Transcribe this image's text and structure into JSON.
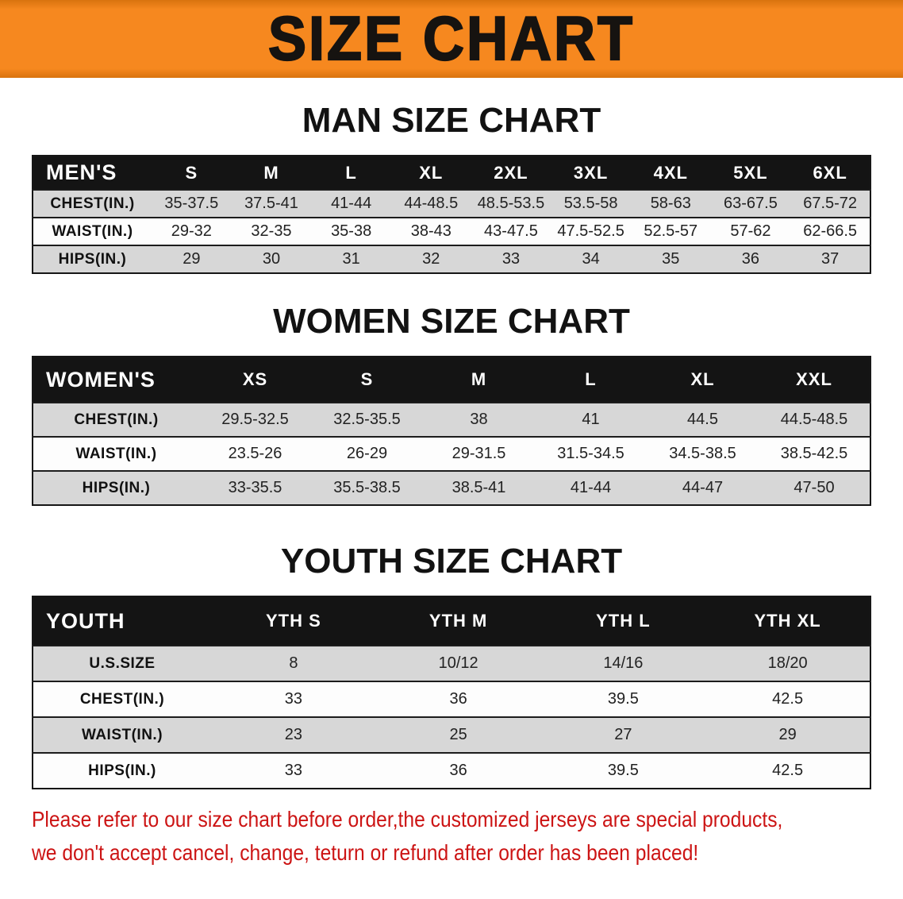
{
  "banner": {
    "title": "SIZE CHART",
    "bg_color": "#f6881f",
    "text_color": "#161310"
  },
  "colors": {
    "table_header_bg": "#141414",
    "table_header_text": "#ffffff",
    "row_shade": "#d7d7d7"
  },
  "sections": [
    {
      "id": "men",
      "heading": "MAN SIZE CHART",
      "table": {
        "label": "MEN'S",
        "columns": [
          "S",
          "M",
          "L",
          "XL",
          "2XL",
          "3XL",
          "4XL",
          "5XL",
          "6XL"
        ],
        "rows": [
          {
            "label": "CHEST(IN.)",
            "values": [
              "35-37.5",
              "37.5-41",
              "41-44",
              "44-48.5",
              "48.5-53.5",
              "53.5-58",
              "58-63",
              "63-67.5",
              "67.5-72"
            ]
          },
          {
            "label": "WAIST(IN.)",
            "values": [
              "29-32",
              "32-35",
              "35-38",
              "38-43",
              "43-47.5",
              "47.5-52.5",
              "52.5-57",
              "57-62",
              "62-66.5"
            ]
          },
          {
            "label": "HIPS(IN.)",
            "values": [
              "29",
              "30",
              "31",
              "32",
              "33",
              "34",
              "35",
              "36",
              "37"
            ]
          }
        ]
      }
    },
    {
      "id": "women",
      "heading": "WOMEN SIZE CHART",
      "table": {
        "label": "WOMEN'S",
        "columns": [
          "XS",
          "S",
          "M",
          "L",
          "XL",
          "XXL"
        ],
        "rows": [
          {
            "label": "CHEST(IN.)",
            "values": [
              "29.5-32.5",
              "32.5-35.5",
              "38",
              "41",
              "44.5",
              "44.5-48.5"
            ]
          },
          {
            "label": "WAIST(IN.)",
            "values": [
              "23.5-26",
              "26-29",
              "29-31.5",
              "31.5-34.5",
              "34.5-38.5",
              "38.5-42.5"
            ]
          },
          {
            "label": "HIPS(IN.)",
            "values": [
              "33-35.5",
              "35.5-38.5",
              "38.5-41",
              "41-44",
              "44-47",
              "47-50"
            ]
          }
        ]
      }
    },
    {
      "id": "youth",
      "heading": "YOUTH SIZE CHART",
      "table": {
        "label": "YOUTH",
        "columns": [
          "YTH S",
          "YTH M",
          "YTH L",
          "YTH XL"
        ],
        "rows": [
          {
            "label": "U.S.SIZE",
            "values": [
              "8",
              "10/12",
              "14/16",
              "18/20"
            ]
          },
          {
            "label": "CHEST(IN.)",
            "values": [
              "33",
              "36",
              "39.5",
              "42.5"
            ]
          },
          {
            "label": "WAIST(IN.)",
            "values": [
              "23",
              "25",
              "27",
              "29"
            ]
          },
          {
            "label": "HIPS(IN.)",
            "values": [
              "33",
              "36",
              "39.5",
              "42.5"
            ]
          }
        ]
      }
    }
  ],
  "disclaimer": {
    "color": "#cc1414",
    "lines": [
      "Please refer to our size chart before order,the customized jerseys are special products,",
      "we don't accept cancel, change, teturn or refund after order has been placed!"
    ]
  }
}
